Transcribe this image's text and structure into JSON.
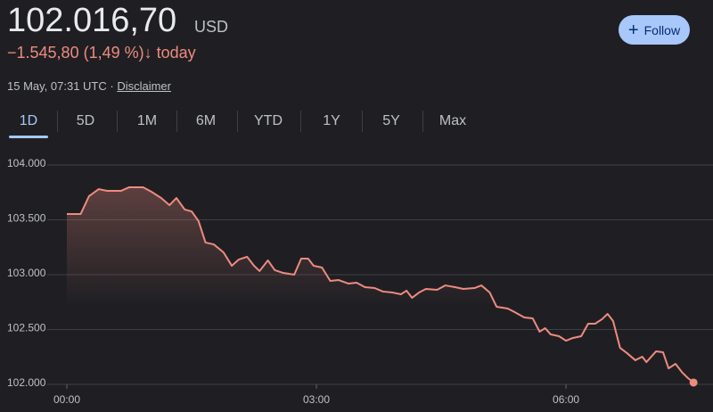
{
  "header": {
    "price": "102.016,70",
    "currency": "USD",
    "change": "−1.545,80 (1,49 %)",
    "change_arrow": "↓",
    "change_period": "today",
    "timestamp": "15 May, 07:31 UTC · ",
    "disclaimer": "Disclaimer",
    "follow_button": "Follow"
  },
  "tabs": [
    "1D",
    "5D",
    "1M",
    "6M",
    "YTD",
    "1Y",
    "5Y",
    "Max"
  ],
  "selected_tab": 0,
  "chart_data": {
    "type": "line",
    "color": "#ee8b7f",
    "x": [
      0,
      10,
      16,
      23,
      29,
      39,
      45,
      55,
      61,
      68,
      74,
      79,
      85,
      90,
      95,
      100,
      106,
      113,
      119,
      124,
      130,
      135,
      139,
      145,
      150,
      156,
      164,
      169,
      174,
      178,
      184,
      190,
      196,
      203,
      209,
      215,
      222,
      228,
      235,
      241,
      245,
      249,
      254,
      259,
      267,
      273,
      280,
      286,
      294,
      299,
      305,
      310,
      318,
      323,
      330,
      336,
      341,
      345,
      349,
      355,
      360,
      365,
      371,
      376,
      381,
      386,
      390,
      394,
      399,
      404,
      410,
      415,
      418,
      425,
      430,
      434,
      439,
      444,
      448,
      452
    ],
    "values": [
      103553,
      103553,
      103716,
      103780,
      103764,
      103764,
      103797,
      103797,
      103756,
      103699,
      103634,
      103699,
      103594,
      103577,
      103488,
      103293,
      103276,
      103203,
      103081,
      103138,
      103163,
      103081,
      103033,
      103130,
      103041,
      103016,
      103000,
      103146,
      103146,
      103081,
      103065,
      102943,
      102951,
      102919,
      102927,
      102886,
      102878,
      102846,
      102837,
      102821,
      102854,
      102789,
      102837,
      102870,
      102862,
      102902,
      102886,
      102870,
      102878,
      102902,
      102837,
      102707,
      102691,
      102659,
      102610,
      102602,
      102480,
      102512,
      102455,
      102439,
      102398,
      102423,
      102439,
      102553,
      102553,
      102594,
      102642,
      102577,
      102333,
      102285,
      102220,
      102252,
      102203,
      102301,
      102293,
      102146,
      102187,
      102106,
      102057,
      102016.7
    ],
    "xlim": [
      0,
      460
    ],
    "xticks": [
      {
        "value": 0,
        "label": "00:00"
      },
      {
        "value": 180,
        "label": "03:00"
      },
      {
        "value": 360,
        "label": "06:00"
      }
    ],
    "ylim": [
      102000,
      104000
    ],
    "yticks": [
      {
        "value": 102000,
        "label": "102.000"
      },
      {
        "value": 102500,
        "label": "102.500"
      },
      {
        "value": 103000,
        "label": "103.000"
      },
      {
        "value": 103500,
        "label": "103.500"
      },
      {
        "value": 104000,
        "label": "104.000"
      }
    ],
    "grid": true
  }
}
